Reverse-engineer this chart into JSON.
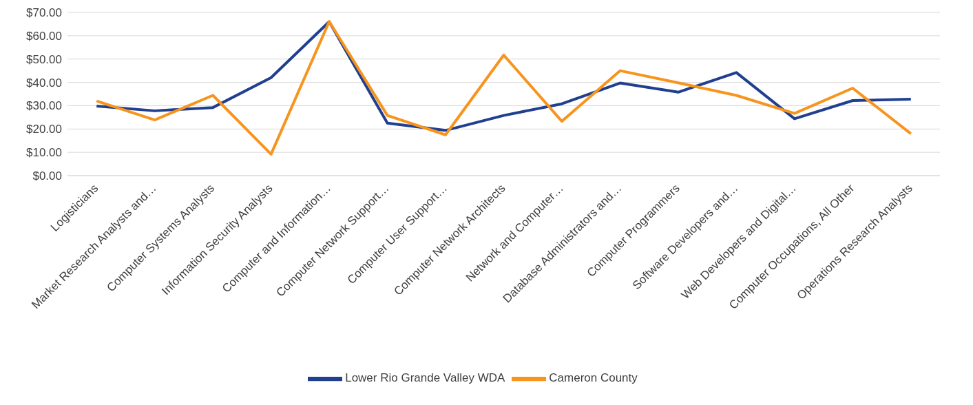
{
  "chart_data": {
    "type": "line",
    "categories": [
      "Logisticians",
      "Market Research Analysts and…",
      "Computer Systems Analysts",
      "Information Security Analysts",
      "Computer and Information…",
      "Computer Network Support…",
      "Computer User Support…",
      "Computer Network Architects",
      "Network and Computer…",
      "Database Administrators and…",
      "Computer Programmers",
      "Software Developers and…",
      "Web Developers and Digital…",
      "Computer Occupations, All Other",
      "Operations Research Analysts"
    ],
    "series": [
      {
        "name": "Lower Rio Grande Valley WDA",
        "color": "#203f8f",
        "values": [
          29.8,
          27.8,
          29.2,
          42,
          66,
          22.5,
          19.4,
          25.8,
          30.8,
          39.7,
          35.8,
          44.2,
          24.4,
          32.2,
          32.8
        ]
      },
      {
        "name": "Cameron County",
        "color": "#f7941d",
        "values": [
          32,
          23.9,
          34.4,
          9.2,
          66.1,
          25.8,
          17.5,
          51.7,
          23.3,
          45,
          39.8,
          34.4,
          26.7,
          37.5,
          18
        ]
      }
    ],
    "ylim": [
      0,
      70
    ],
    "yticks": [
      {
        "value": 0,
        "label": "$0.00"
      },
      {
        "value": 10,
        "label": "$10.00"
      },
      {
        "value": 20,
        "label": "$20.00"
      },
      {
        "value": 30,
        "label": "$30.00"
      },
      {
        "value": 40,
        "label": "$40.00"
      },
      {
        "value": 50,
        "label": "$50.00"
      },
      {
        "value": 60,
        "label": "$60.00"
      },
      {
        "value": 70,
        "label": "$70.00"
      }
    ],
    "grid": "y",
    "legend": "bottom",
    "marker": "none",
    "line_style": "solid"
  }
}
